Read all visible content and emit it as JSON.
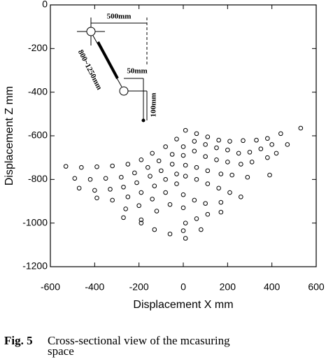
{
  "chart_data": {
    "type": "scatter",
    "xlabel": "Displacement X mm",
    "ylabel": "Displacement Z mm",
    "xlim": [
      -600,
      600
    ],
    "xticks": [
      -600,
      -400,
      -200,
      0,
      200,
      400,
      600
    ],
    "ylim": [
      -1200,
      0
    ],
    "yticks": [
      -1200,
      -1000,
      -800,
      -600,
      -400,
      -200,
      0
    ],
    "color": "#000000",
    "x": [
      -530,
      -460,
      -390,
      -320,
      -250,
      -190,
      -140,
      -80,
      -30,
      10,
      60,
      110,
      160,
      210,
      270,
      330,
      380,
      440,
      470,
      530,
      -490,
      -420,
      -350,
      -280,
      -220,
      -160,
      -110,
      -50,
      0,
      50,
      100,
      150,
      200,
      250,
      300,
      350,
      400,
      -470,
      -400,
      -330,
      -270,
      -210,
      -150,
      -100,
      -50,
      0,
      50,
      100,
      150,
      200,
      260,
      310,
      380,
      420,
      -390,
      -320,
      -250,
      -190,
      -130,
      -80,
      -30,
      10,
      60,
      110,
      170,
      220,
      290,
      390,
      -260,
      -200,
      -140,
      -80,
      -30,
      10,
      60,
      110,
      160,
      210,
      260,
      -270,
      -190,
      -120,
      -60,
      0,
      50,
      100,
      170,
      -190,
      -130,
      -60,
      10,
      60,
      110,
      0,
      170,
      10,
      0,
      80
    ],
    "y": [
      -740,
      -745,
      -742,
      -738,
      -730,
      -710,
      -680,
      -650,
      -615,
      -575,
      -590,
      -605,
      -620,
      -625,
      -622,
      -620,
      -612,
      -590,
      -640,
      -565,
      -795,
      -800,
      -795,
      -790,
      -770,
      -745,
      -715,
      -685,
      -650,
      -625,
      -640,
      -655,
      -665,
      -680,
      -675,
      -660,
      -640,
      -840,
      -850,
      -845,
      -835,
      -815,
      -785,
      -760,
      -730,
      -690,
      -670,
      -695,
      -710,
      -720,
      -730,
      -720,
      -700,
      -680,
      -885,
      -895,
      -880,
      -860,
      -830,
      -800,
      -775,
      -735,
      -745,
      -760,
      -775,
      -780,
      -790,
      -780,
      -935,
      -920,
      -890,
      -860,
      -820,
      -785,
      -800,
      -820,
      -840,
      -860,
      -880,
      -975,
      -985,
      -945,
      -915,
      -870,
      -895,
      -910,
      -905,
      -1000,
      -1030,
      -1050,
      -1000,
      -980,
      -960,
      -930,
      -950,
      -1070,
      -1035,
      -1030
    ]
  },
  "diagram": {
    "annotations": [
      "500mm",
      "50mm",
      "800~1250mm",
      "100mm"
    ]
  },
  "caption": {
    "label": "Fig. 5",
    "lines": [
      "Cross-sectional view of the mcasuring",
      "space"
    ]
  }
}
